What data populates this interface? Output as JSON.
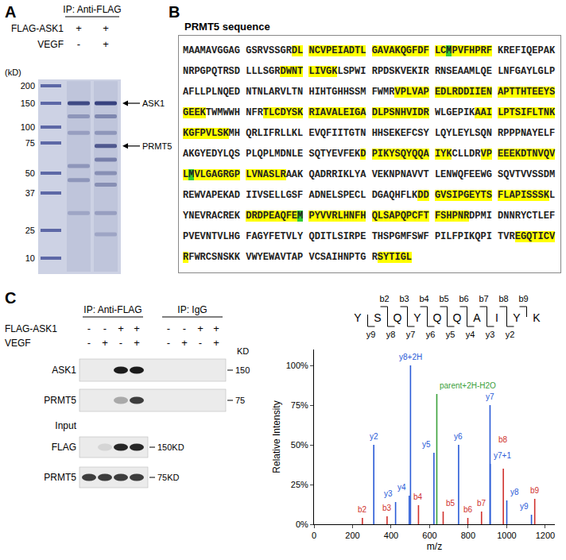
{
  "figure": {
    "A": {
      "letter": "A",
      "header": "IP: Anti-FLAG",
      "rows": [
        {
          "name": "FLAG-ASK1",
          "signs": [
            "+",
            "+"
          ]
        },
        {
          "name": "VEGF",
          "signs": [
            "-",
            "+"
          ]
        }
      ],
      "marker_unit": "(kD)",
      "markers": [
        200,
        150,
        100,
        75,
        50,
        37,
        25,
        10
      ],
      "lanes": [
        {
          "bands": [
            {
              "kD": 150,
              "intensity": 0.8
            },
            {
              "kD": 120,
              "intensity": 0.3
            },
            {
              "kD": 90,
              "intensity": 0.25
            },
            {
              "kD": 55,
              "intensity": 0.3
            },
            {
              "kD": 45,
              "intensity": 0.3
            },
            {
              "kD": 30,
              "intensity": 0.2
            }
          ]
        },
        {
          "bands": [
            {
              "kD": 150,
              "intensity": 0.85
            },
            {
              "kD": 120,
              "intensity": 0.4
            },
            {
              "kD": 90,
              "intensity": 0.3
            },
            {
              "kD": 72,
              "intensity": 0.7
            },
            {
              "kD": 60,
              "intensity": 0.45
            },
            {
              "kD": 50,
              "intensity": 0.35
            },
            {
              "kD": 42,
              "intensity": 0.35
            },
            {
              "kD": 30,
              "intensity": 0.25
            },
            {
              "kD": 22,
              "intensity": 0.2
            }
          ]
        }
      ],
      "arrows": [
        {
          "label": "ASK1",
          "kD": 150
        },
        {
          "label": "PRMT5",
          "kD": 72
        }
      ]
    },
    "B": {
      "letter": "B",
      "title": "PRMT5 sequence",
      "sequence": "MAAMAVGGAGGSRVSSGRDLNCVPEIADTLGAVAKQGFDFLCMPVFHPRFKREFIQEPAKNRPGPQTRSDLLLSGRDWNTLIVGKLSPWIRPDSKVEKIRRNSEAAMLQELNFGAYLGLPAFLLPLNQEDNTNLARVLTNHIHTGHHSSMFWMRVPLVAPEDLRDDIIENAPTTHTEEYSGEEKTWMWWHNFRTLCDYSKRIAVALEIGADLPSNHVIDRWLGEPIKAAILPTSIFLTNKKGFPVLSKMHQRLIFRLLKLEVQFIITGTNHHSEKEFCSYLQYLEYLSQNRPPPNAYELFAKGYEDYLQSPLQPLMDNLESQTYEVFEKDPIKYSQYQQAIYKCLLDRVPEEEKDTNVQVLMVLGAGRGPLVNASLRAAKQADRRIKLYAVEKNPNAVVTLENWQFEEWGSQVTVVSSDMREWVAPEKADIIVSELLGSFADNELSPECLDGAQHFLKDDGVSIPGEYTSFLAPISSSKLYNEVRACREKDRDPEAQFEMPYVVRLHNFHQLSAPQPCFTFSHPNRDPMIDNNRYCTLEFPVEVNTVLHGFAGYFETVLYQDITLSIRPETHSPGMFSWFPILFPIKQPITVREGQTICVRFWRCSNSKKVWYEWAVTAPVCSAIHNPTGRSYTIGL",
      "highlighted": [
        "DLNCVPEIADTLGAVAKQGFDFLCMPVFHPRF",
        "DWNTLIVGK",
        "VPLVAPEDLRDDIIENAPTTHTEEYSGEEK",
        "TLCDYSKRIAVALEIGADLPSNHVIDR",
        "AAILPTSIFLTNKKGFPVLSK",
        "DPIKYSQYQQAIYK",
        "VPEEEKDTNVQVLMVLGAGRGPLVNASLR",
        "DDGVSIPGEYTSFLAPISSSK",
        "DRDPEAQFEMPYVVRLHNFHQLSAPQPCFTFSHPNR",
        "EGQTICVR",
        "SYTIGL"
      ],
      "modified_positions": [
        43,
        362,
        500
      ]
    },
    "C": {
      "letter": "C",
      "ip_groups": [
        "IP: Anti-FLAG",
        "IP: IgG"
      ],
      "rows": [
        {
          "name": "FLAG-ASK1",
          "signs": [
            "-",
            "-",
            "+",
            "+",
            "-",
            "-",
            "+",
            "+"
          ]
        },
        {
          "name": "VEGF",
          "signs": [
            "-",
            "+",
            "-",
            "+",
            "-",
            "+",
            "-",
            "+"
          ]
        }
      ],
      "size_unit": "KD",
      "blots": [
        {
          "label": "ASK1",
          "size": 150,
          "bands": [
            0,
            0,
            0.95,
            0.95,
            0,
            0,
            0,
            0
          ]
        },
        {
          "label": "PRMT5",
          "size": 75,
          "bands": [
            0,
            0,
            0.3,
            0.8,
            0,
            0,
            0,
            0
          ]
        }
      ],
      "input_label": "Input",
      "input_blots": [
        {
          "label": "FLAG",
          "size": "150KD",
          "bands": [
            0,
            0.1,
            0.9,
            0.9
          ]
        },
        {
          "label": "PRMT5",
          "size": "75KD",
          "bands": [
            0.8,
            0.8,
            0.8,
            0.8
          ]
        }
      ],
      "fragment_map": {
        "sequence": "YSQYQQAIYK",
        "b": [
          "b2",
          "b3",
          "b4",
          "b5",
          "b6",
          "b7",
          "b8",
          "b9"
        ],
        "y": [
          "y9",
          "y8",
          "y7",
          "y6",
          "y5",
          "y4",
          "y3",
          "y2"
        ]
      }
    }
  },
  "chart_data": {
    "type": "spectrum",
    "xlabel": "m/z",
    "ylabel": "Relative Intensity",
    "xlim": [
      0,
      1250
    ],
    "xticks": [
      0,
      200,
      400,
      600,
      800,
      1000,
      1200
    ],
    "ylim": [
      0,
      110
    ],
    "yticks": [
      {
        "value": 0,
        "label": "0%"
      },
      {
        "value": 25,
        "label": "25%"
      },
      {
        "value": 50,
        "label": "50%"
      },
      {
        "value": 75,
        "label": "75%"
      },
      {
        "value": 100,
        "label": "100%"
      }
    ],
    "grid": false,
    "series": [
      {
        "color": "#d0312d",
        "x": [
          251.1,
          379.2,
          542.2,
          670.3,
          798.3,
          869.4,
          982.5,
          1145.5
        ],
        "values": [
          4,
          5,
          12,
          8,
          4,
          8,
          35,
          16
        ],
        "labels": [
          "b2",
          "b3",
          "b4",
          "b5",
          "b6",
          "b7",
          "b8",
          "b9"
        ]
      },
      {
        "color": "#2a5bd7",
        "x": [
          310.2,
          423.3,
          494.3,
          622.4,
          750.4,
          913.5,
          1000.5,
          1128.6,
          500.8,
          914.5
        ],
        "values": [
          50,
          14,
          18,
          45,
          50,
          75,
          15,
          6,
          100,
          38
        ],
        "labels": [
          "y2",
          "y3",
          "y4",
          "y5",
          "y6",
          "y7",
          "y8",
          "y9",
          "y8+2H",
          "y7+1"
        ]
      },
      {
        "color": "#3aa03a",
        "x": [
          637.3
        ],
        "values": [
          82
        ],
        "labels": [
          "parent+2H-H2O"
        ]
      }
    ]
  }
}
